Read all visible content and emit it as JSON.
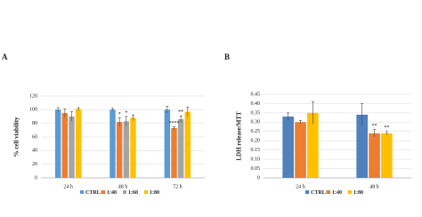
{
  "chart_data": [
    {
      "type": "bar",
      "panel": "A",
      "y_label": "% cell viability",
      "categories": [
        "24 h",
        "48 h",
        "72 h"
      ],
      "series": [
        {
          "name": "CTRL1",
          "color": "#5b9bd5",
          "values": [
            100,
            100,
            100
          ],
          "errors": [
            3,
            2,
            5
          ]
        },
        {
          "name": "1:40",
          "color": "#ed7d31",
          "values": [
            95,
            82,
            73
          ],
          "errors": [
            6,
            6,
            2
          ]
        },
        {
          "name": "1:60",
          "color": "#a5a5a5",
          "values": [
            90,
            83,
            86
          ],
          "errors": [
            7,
            7,
            5
          ]
        },
        {
          "name": "1:80",
          "color": "#ffc000",
          "values": [
            101,
            88,
            97
          ],
          "errors": [
            2,
            4,
            7
          ]
        }
      ],
      "ylim": [
        0,
        120
      ],
      "yticks": [
        0,
        20,
        40,
        60,
        80,
        100,
        120
      ],
      "grid": true,
      "annotations": [
        {
          "text": "*",
          "category": "48 h",
          "series": "1:40"
        },
        {
          "text": "*",
          "category": "48 h",
          "series": "1:60"
        },
        {
          "text": "****",
          "category": "72 h",
          "series": "1:40"
        },
        {
          "text": "**",
          "category": "72 h",
          "series": "1:60"
        }
      ]
    },
    {
      "type": "bar",
      "panel": "B",
      "y_label": "LDH release/MTT",
      "categories": [
        "24 h",
        "48 h"
      ],
      "series": [
        {
          "name": "CTRL1",
          "color": "#4f81bd",
          "values": [
            0.33,
            0.34
          ],
          "errors": [
            0.02,
            0.06
          ]
        },
        {
          "name": "1:40",
          "color": "#ed7d31",
          "values": [
            0.3,
            0.24
          ],
          "errors": [
            0.01,
            0.02
          ]
        },
        {
          "name": "1:80",
          "color": "#ffc000",
          "values": [
            0.35,
            0.24
          ],
          "errors": [
            0.06,
            0.01
          ]
        }
      ],
      "ylim": [
        0,
        0.45
      ],
      "yticks": [
        0,
        {
          "value": 0.05,
          "label": "0.05"
        },
        {
          "value": 0.1,
          "label": "0.10"
        },
        {
          "value": 0.15,
          "label": "0.15"
        },
        {
          "value": 0.2,
          "label": "0.20"
        },
        {
          "value": 0.25,
          "label": "0.25"
        },
        {
          "value": 0.3,
          "label": "0.30"
        },
        {
          "value": 0.35,
          "label": "0.35"
        },
        {
          "value": 0.4,
          "label": "0.40"
        },
        {
          "value": 0.45,
          "label": "0.45"
        }
      ],
      "grid": true,
      "annotations": [
        {
          "text": "**",
          "category": "48 h",
          "series": "1:40"
        },
        {
          "text": "**",
          "category": "48 h",
          "series": "1:80"
        }
      ]
    }
  ]
}
